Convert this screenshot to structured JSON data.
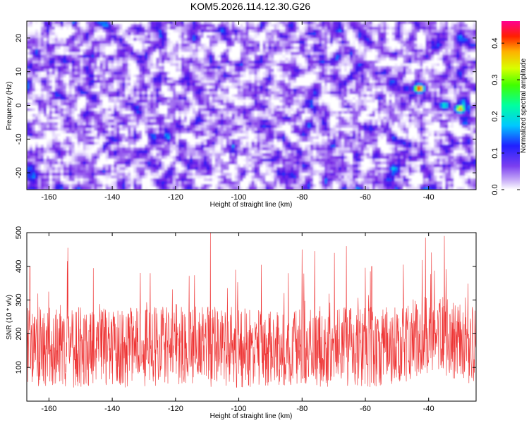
{
  "figure": {
    "title": "KOM5.2026.114.12.30.G26"
  },
  "chart_data": [
    {
      "type": "heatmap",
      "xlabel": "Height of straight line (km)",
      "ylabel": "Frequency (Hz)",
      "xlim": [
        -167,
        -25
      ],
      "ylim": [
        -25,
        25
      ],
      "x_ticks": [
        -160,
        -140,
        -120,
        -100,
        -80,
        -60,
        -40
      ],
      "y_ticks": [
        -20,
        -10,
        0,
        10,
        20
      ],
      "colorbar": {
        "label": "Normalized spectral amplitude",
        "range": [
          0.0,
          0.46
        ],
        "ticks": [
          0.0,
          0.1,
          0.2,
          0.3,
          0.4
        ],
        "colormap": [
          "#ffffff",
          "#9b5cf0",
          "#5a1ee0",
          "#1010ff",
          "#00c8ff",
          "#00ff80",
          "#c8ff00",
          "#ffa500",
          "#ff0000",
          "#ff0080"
        ]
      },
      "hotspots": [
        {
          "x": -43,
          "y": 5,
          "value": 0.46
        },
        {
          "x": -35,
          "y": 0,
          "value": 0.3
        },
        {
          "x": -30,
          "y": -1,
          "value": 0.42
        },
        {
          "x": -47,
          "y": 5,
          "value": 0.2
        },
        {
          "x": -165,
          "y": 19,
          "value": 0.12
        },
        {
          "x": -109,
          "y": 9,
          "value": 0.1
        },
        {
          "x": -150,
          "y": -16,
          "value": 0.1
        }
      ]
    },
    {
      "type": "line",
      "xlabel": "Height of straight line (km)",
      "ylabel": "SNR (10 * v/v)",
      "xlim": [
        -167,
        -25
      ],
      "ylim": [
        0,
        500
      ],
      "x_ticks": [
        -160,
        -140,
        -120,
        -100,
        -80,
        -60,
        -40
      ],
      "y_ticks": [
        100,
        200,
        300,
        400,
        500
      ],
      "series": [
        {
          "color": "#ee3333",
          "peaks": [
            {
              "x": -109,
              "y": 500
            },
            {
              "x": -154,
              "y": 455
            },
            {
              "x": -66,
              "y": 460
            },
            {
              "x": -80,
              "y": 450
            },
            {
              "x": -41,
              "y": 485
            },
            {
              "x": -35,
              "y": 490
            },
            {
              "x": -166,
              "y": 400
            },
            {
              "x": -128,
              "y": 380
            },
            {
              "x": -146,
              "y": 395
            },
            {
              "x": -101,
              "y": 390
            },
            {
              "x": -58,
              "y": 400
            },
            {
              "x": -48,
              "y": 405
            }
          ]
        }
      ]
    }
  ]
}
